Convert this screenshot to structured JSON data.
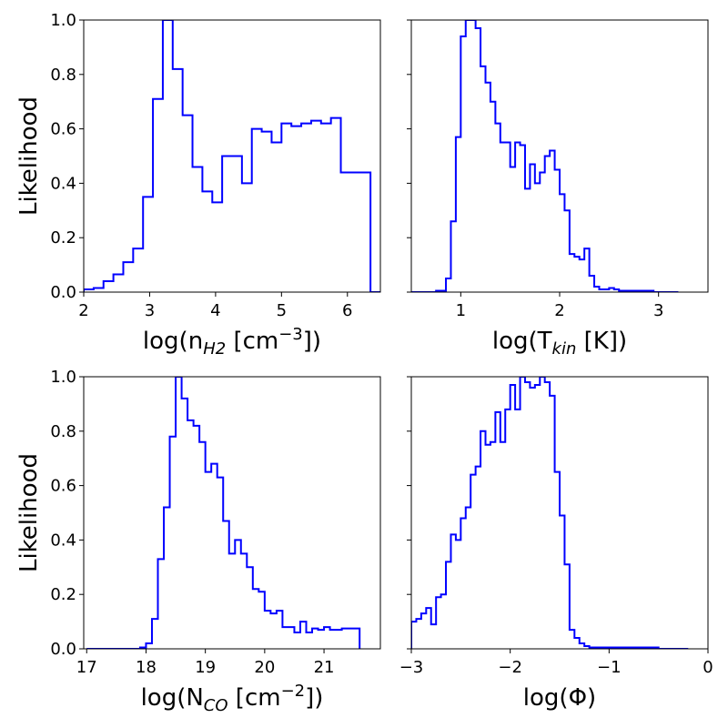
{
  "chart_data": [
    {
      "type": "histogram",
      "panel": "top-left",
      "xlabel": "log(n_H2 [cm^-3])",
      "xlabel_parts": {
        "pre": "log(n",
        "sub": "H2",
        "mid": " [cm",
        "sup": "−3",
        "post": "])"
      },
      "ylabel": "Likelihood",
      "xlim": [
        2.0,
        6.5
      ],
      "ylim": [
        0,
        1.0
      ],
      "xticks": [
        "2",
        "3",
        "4",
        "5",
        "6"
      ],
      "yticks": [
        "0.0",
        "0.2",
        "0.4",
        "0.6",
        "0.8",
        "1.0"
      ],
      "color": "#0000ff",
      "edges": [
        2.0,
        2.15,
        2.3,
        2.45,
        2.6,
        2.75,
        2.9,
        3.05,
        3.2,
        3.35,
        3.5,
        3.65,
        3.8,
        3.95,
        4.1,
        4.25,
        4.4,
        4.55,
        4.7,
        4.85,
        5.0,
        5.15,
        5.3,
        5.45,
        5.6,
        5.75,
        5.9,
        6.05,
        6.2,
        6.35,
        6.5
      ],
      "values": [
        0.01,
        0.015,
        0.04,
        0.065,
        0.11,
        0.16,
        0.35,
        0.71,
        1.0,
        0.82,
        0.65,
        0.46,
        0.37,
        0.33,
        0.5,
        0.5,
        0.4,
        0.6,
        0.59,
        0.55,
        0.62,
        0.61,
        0.62,
        0.63,
        0.62,
        0.64,
        0.44,
        0.44,
        0.44,
        0.0
      ]
    },
    {
      "type": "histogram",
      "panel": "top-right",
      "xlabel": "log(T_kin [K])",
      "xlabel_parts": {
        "pre": "log(T",
        "sub": "kin",
        "mid": " [K])",
        "sup": "",
        "post": ""
      },
      "ylabel": "",
      "xlim": [
        0.5,
        3.5
      ],
      "ylim": [
        0,
        1.0
      ],
      "xticks": [
        "1",
        "2",
        "3"
      ],
      "yticks": [
        "",
        "",
        "",
        "",
        "",
        ""
      ],
      "color": "#0000ff",
      "edges": [
        0.5,
        0.65,
        0.75,
        0.85,
        0.9,
        0.95,
        1.0,
        1.05,
        1.1,
        1.15,
        1.2,
        1.25,
        1.3,
        1.35,
        1.4,
        1.45,
        1.5,
        1.55,
        1.6,
        1.65,
        1.7,
        1.75,
        1.8,
        1.85,
        1.9,
        1.95,
        2.0,
        2.05,
        2.1,
        2.15,
        2.2,
        2.25,
        2.3,
        2.35,
        2.4,
        2.45,
        2.5,
        2.55,
        2.6,
        2.65,
        2.7,
        2.75,
        2.8,
        2.85,
        2.9,
        2.95,
        3.0,
        3.05,
        3.1,
        3.15,
        3.2
      ],
      "values": [
        0.0,
        0.0,
        0.005,
        0.05,
        0.26,
        0.57,
        0.94,
        1.0,
        1.0,
        0.97,
        0.83,
        0.77,
        0.7,
        0.62,
        0.55,
        0.55,
        0.46,
        0.55,
        0.54,
        0.38,
        0.47,
        0.4,
        0.44,
        0.5,
        0.52,
        0.45,
        0.36,
        0.3,
        0.14,
        0.13,
        0.12,
        0.16,
        0.06,
        0.02,
        0.01,
        0.01,
        0.015,
        0.01,
        0.005,
        0.005,
        0.005,
        0.005,
        0.005,
        0.005,
        0.005,
        0.0,
        0.0,
        0.0,
        0.0,
        0.0
      ]
    },
    {
      "type": "histogram",
      "panel": "bottom-left",
      "xlabel": "log(N_CO [cm^-2])",
      "xlabel_parts": {
        "pre": "log(N",
        "sub": "CO",
        "mid": " [cm",
        "sup": "−2",
        "post": "])"
      },
      "ylabel": "Likelihood",
      "xlim": [
        16.95,
        21.95
      ],
      "ylim": [
        0,
        1.0
      ],
      "xticks": [
        "17",
        "18",
        "19",
        "20",
        "21"
      ],
      "yticks": [
        "0.0",
        "0.2",
        "0.4",
        "0.6",
        "0.8",
        "1.0"
      ],
      "color": "#0000ff",
      "edges": [
        17.0,
        17.9,
        18.0,
        18.1,
        18.2,
        18.3,
        18.4,
        18.5,
        18.6,
        18.7,
        18.8,
        18.9,
        19.0,
        19.1,
        19.2,
        19.3,
        19.4,
        19.5,
        19.6,
        19.7,
        19.8,
        19.9,
        20.0,
        20.1,
        20.2,
        20.3,
        20.4,
        20.5,
        20.6,
        20.7,
        20.8,
        20.9,
        21.0,
        21.1,
        21.2,
        21.3,
        21.4,
        21.5,
        21.6
      ],
      "values": [
        0.0,
        0.005,
        0.02,
        0.11,
        0.33,
        0.52,
        0.78,
        1.0,
        0.92,
        0.84,
        0.82,
        0.76,
        0.65,
        0.68,
        0.63,
        0.47,
        0.35,
        0.4,
        0.35,
        0.3,
        0.22,
        0.21,
        0.14,
        0.13,
        0.14,
        0.08,
        0.08,
        0.06,
        0.1,
        0.06,
        0.075,
        0.07,
        0.08,
        0.07,
        0.07,
        0.075,
        0.075,
        0.075
      ]
    },
    {
      "type": "histogram",
      "panel": "bottom-right",
      "xlabel": "log(Φ)",
      "xlabel_parts": {
        "pre": "log(Φ)",
        "sub": "",
        "mid": "",
        "sup": "",
        "post": ""
      },
      "ylabel": "",
      "xlim": [
        -3.0,
        0.0
      ],
      "ylim": [
        0,
        1.0
      ],
      "xticks": [
        "−3",
        "−2",
        "−1",
        "0"
      ],
      "yticks": [
        "",
        "",
        "",
        "",
        "",
        ""
      ],
      "color": "#0000ff",
      "edges": [
        -3.0,
        -2.95,
        -2.9,
        -2.85,
        -2.8,
        -2.75,
        -2.7,
        -2.65,
        -2.6,
        -2.55,
        -2.5,
        -2.45,
        -2.4,
        -2.35,
        -2.3,
        -2.25,
        -2.2,
        -2.15,
        -2.1,
        -2.05,
        -2.0,
        -1.95,
        -1.9,
        -1.85,
        -1.8,
        -1.75,
        -1.7,
        -1.65,
        -1.6,
        -1.55,
        -1.5,
        -1.45,
        -1.4,
        -1.35,
        -1.3,
        -1.25,
        -1.2,
        -1.15,
        -1.1,
        -1.05,
        -1.0,
        -0.95,
        -0.9,
        -0.85,
        -0.8,
        -0.75,
        -0.7,
        -0.65,
        -0.6,
        -0.55,
        -0.5,
        -0.45,
        -0.4,
        -0.35,
        -0.3,
        -0.25,
        -0.2
      ],
      "values": [
        0.1,
        0.11,
        0.13,
        0.15,
        0.09,
        0.19,
        0.2,
        0.32,
        0.42,
        0.4,
        0.48,
        0.52,
        0.64,
        0.67,
        0.8,
        0.75,
        0.76,
        0.87,
        0.76,
        0.88,
        0.97,
        0.88,
        1.0,
        0.98,
        0.96,
        0.97,
        1.0,
        0.98,
        0.93,
        0.65,
        0.49,
        0.31,
        0.07,
        0.04,
        0.02,
        0.01,
        0.005,
        0.005,
        0.005,
        0.005,
        0.005,
        0.005,
        0.005,
        0.005,
        0.005,
        0.005,
        0.005,
        0.005,
        0.005,
        0.005,
        0.0,
        0.0,
        0.0,
        0.0,
        0.0,
        0.0
      ]
    }
  ]
}
